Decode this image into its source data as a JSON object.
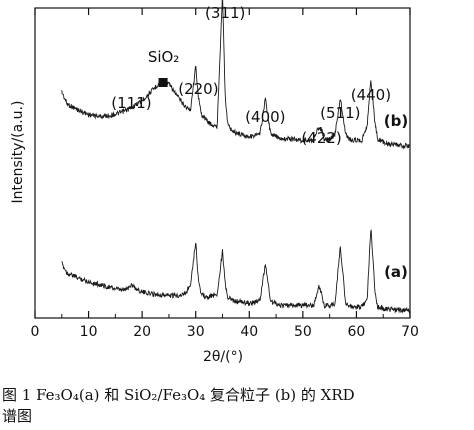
{
  "chart_data": {
    "type": "line",
    "xlabel": "2θ/(°)",
    "ylabel": "Intensity/(a.u.)",
    "xlim": [
      0,
      70
    ],
    "xticks": [
      "0",
      "10",
      "20",
      "30",
      "40",
      "50",
      "60",
      "70"
    ],
    "grid": false,
    "series": [
      {
        "name": "(b)",
        "label_text": "(b)",
        "x": [
          5,
          6,
          8,
          10,
          12,
          14,
          16,
          18,
          20,
          22,
          23,
          24,
          25,
          26,
          27,
          28,
          29,
          30,
          30.5,
          31,
          32,
          33,
          34,
          35,
          35.5,
          36,
          37,
          38,
          40,
          42,
          43,
          44,
          46,
          48,
          50,
          52,
          53,
          53.5,
          54,
          55,
          56,
          57,
          58,
          59,
          60,
          61,
          62,
          62.7,
          63.5,
          64,
          66,
          68,
          70
        ],
        "y": [
          0.95,
          0.82,
          0.76,
          0.71,
          0.69,
          0.7,
          0.73,
          0.78,
          0.86,
          0.97,
          1.03,
          1.06,
          1.03,
          0.95,
          0.87,
          0.8,
          0.75,
          1.22,
          0.9,
          0.72,
          0.65,
          0.6,
          0.58,
          2.0,
          0.9,
          0.6,
          0.53,
          0.51,
          0.48,
          0.5,
          0.88,
          0.5,
          0.46,
          0.45,
          0.44,
          0.44,
          0.58,
          0.55,
          0.44,
          0.45,
          0.5,
          0.88,
          0.5,
          0.44,
          0.44,
          0.44,
          0.6,
          1.08,
          0.6,
          0.45,
          0.4,
          0.38,
          0.38
        ]
      },
      {
        "name": "(a)",
        "label_text": "(a)",
        "x": [
          5,
          6,
          8,
          10,
          12,
          14,
          16,
          17,
          18,
          19,
          20,
          22,
          24,
          26,
          28,
          29,
          30,
          30.5,
          31,
          32,
          34,
          35,
          35.5,
          36,
          37,
          40,
          42,
          43,
          44,
          46,
          48,
          50,
          52,
          53,
          53.5,
          54,
          55,
          56,
          57,
          58,
          59,
          60,
          61,
          62,
          62.7,
          63.5,
          64,
          66,
          68,
          70
        ],
        "y": [
          0.52,
          0.42,
          0.37,
          0.33,
          0.3,
          0.27,
          0.24,
          0.25,
          0.3,
          0.25,
          0.22,
          0.2,
          0.19,
          0.18,
          0.2,
          0.3,
          0.75,
          0.35,
          0.2,
          0.16,
          0.2,
          0.65,
          0.3,
          0.16,
          0.13,
          0.1,
          0.13,
          0.52,
          0.12,
          0.08,
          0.08,
          0.08,
          0.08,
          0.28,
          0.2,
          0.08,
          0.08,
          0.1,
          0.7,
          0.1,
          0.06,
          0.06,
          0.06,
          0.15,
          0.9,
          0.2,
          0.06,
          0.04,
          0.03,
          0.03
        ]
      }
    ],
    "annotations": [
      {
        "text": "(311)",
        "x": 35.5
      },
      {
        "text": "SiO₂",
        "x": 24
      },
      {
        "text": "(111)",
        "x": 18
      },
      {
        "text": "(220)",
        "x": 30.5
      },
      {
        "text": "(400)",
        "x": 43
      },
      {
        "text": "(422)",
        "x": 53.5
      },
      {
        "text": "(511)",
        "x": 57
      },
      {
        "text": "(440)",
        "x": 62.7
      }
    ]
  },
  "caption": {
    "line1": "图 1  Fe₃O₄(a) 和 SiO₂/Fe₃O₄ 复合粒子 (b) 的 XRD",
    "line2": "谱图"
  }
}
